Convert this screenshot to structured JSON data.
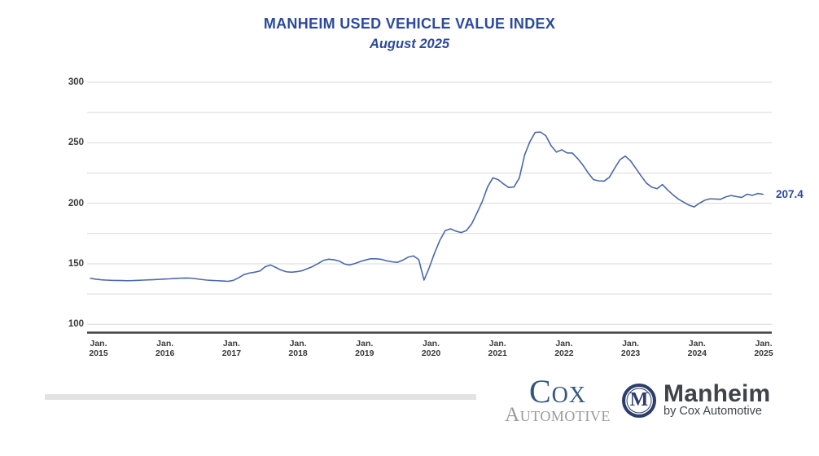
{
  "colors": {
    "accent_blue": "#2b4a9e",
    "line_blue": "#4a69a8",
    "label_dark": "#3a3a3a",
    "grid_gray": "#d9d9d9",
    "axis_dark": "#404040",
    "cox_blue": "#33587e",
    "logo_gray": "#9a9a9a",
    "manheim_navy": "#2d3e6b",
    "manheim_text": "#3f434a",
    "bar_gray": "#e3e3e3"
  },
  "header": {
    "title": "MANHEIM USED VEHICLE VALUE INDEX",
    "subtitle": "August 2025"
  },
  "chart_data": {
    "type": "line",
    "title": "MANHEIM USED VEHICLE VALUE INDEX",
    "subtitle": "August 2025",
    "series_name": "Manheim Used Vehicle Value Index",
    "frequency": "monthly",
    "x_start": "2015-01",
    "x_end": "2025-08",
    "values": [
      138.0,
      137.3,
      136.8,
      136.5,
      136.3,
      136.2,
      136.1,
      136.0,
      136.1,
      136.3,
      136.5,
      136.7,
      136.9,
      137.1,
      137.4,
      137.6,
      137.9,
      138.1,
      138.2,
      138.1,
      137.6,
      137.0,
      136.5,
      136.2,
      136.0,
      135.8,
      135.5,
      136.3,
      138.5,
      141.1,
      142.3,
      143.0,
      144.0,
      147.5,
      149.0,
      147.0,
      144.8,
      143.4,
      143.0,
      143.5,
      144.3,
      146.0,
      147.8,
      150.2,
      152.8,
      153.8,
      153.3,
      152.2,
      149.8,
      149.0,
      150.3,
      151.9,
      153.2,
      154.2,
      154.1,
      153.6,
      152.4,
      151.6,
      151.2,
      153.0,
      155.5,
      156.5,
      153.5,
      136.5,
      147.0,
      159.0,
      169.5,
      177.4,
      178.9,
      177.0,
      175.8,
      177.5,
      183.0,
      192.0,
      201.5,
      213.5,
      221.0,
      219.5,
      216.0,
      213.0,
      213.5,
      221.0,
      240.0,
      251.0,
      258.6,
      258.8,
      255.8,
      247.5,
      242.3,
      244.2,
      241.6,
      241.5,
      237.0,
      231.5,
      225.0,
      219.5,
      218.5,
      218.3,
      221.5,
      229.0,
      236.0,
      239.0,
      235.0,
      228.8,
      222.5,
      216.6,
      213.3,
      212.0,
      215.5,
      211.0,
      207.0,
      203.5,
      201.0,
      198.5,
      197.0,
      200.0,
      202.5,
      203.7,
      203.5,
      203.3,
      205.3,
      206.4,
      205.5,
      204.8,
      207.5,
      206.6,
      208.1,
      207.4
    ],
    "x_tick_labels": [
      {
        "month": "Jan.",
        "year": "2015"
      },
      {
        "month": "Jan.",
        "year": "2016"
      },
      {
        "month": "Jan.",
        "year": "2017"
      },
      {
        "month": "Jan.",
        "year": "2018"
      },
      {
        "month": "Jan.",
        "year": "2019"
      },
      {
        "month": "Jan.",
        "year": "2020"
      },
      {
        "month": "Jan.",
        "year": "2021"
      },
      {
        "month": "Jan.",
        "year": "2022"
      },
      {
        "month": "Jan.",
        "year": "2023"
      },
      {
        "month": "Jan.",
        "year": "2024"
      },
      {
        "month": "Jan.",
        "year": "2025"
      }
    ],
    "y_tick_labels": [
      "300",
      "250",
      "200",
      "150",
      "100"
    ],
    "y_gridlines": [
      100,
      125,
      150,
      175,
      200,
      225,
      250,
      275,
      300
    ],
    "ylim": [
      100,
      300
    ],
    "grid": "horizontal-only",
    "legend": "none",
    "end_label": "207.4",
    "latest_value": 207.4
  },
  "footer": {
    "cox_logo": {
      "name": "Cox",
      "division": "Automotive"
    },
    "manheim_logo": {
      "monogram": "M",
      "name": "Manheim",
      "tagline": "by Cox Automotive"
    }
  }
}
